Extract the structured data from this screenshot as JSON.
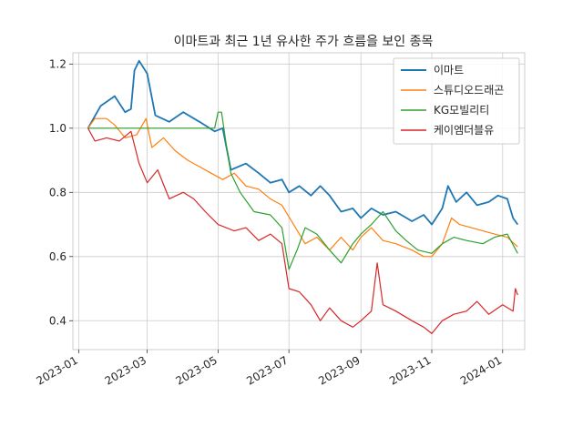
{
  "chart_data": {
    "type": "line",
    "title": "이마트과 최근 1년 유사한 주가 흐름을 보인 종목",
    "xlabel": "",
    "ylabel": "",
    "x_ticks": [
      "2023-01",
      "2023-03",
      "2023-05",
      "2023-07",
      "2023-09",
      "2023-11",
      "2024-01"
    ],
    "y_ticks": [
      "0.4",
      "0.6",
      "0.8",
      "1.0",
      "1.2"
    ],
    "xlim": [
      "2022-12-27",
      "2024-01-20"
    ],
    "ylim": [
      0.31,
      1.235
    ],
    "grid": true,
    "legend_position": "top-right",
    "series": [
      {
        "name": "이마트",
        "color": "#1f77b4",
        "points": [
          [
            "2023-01-09",
            1.0
          ],
          [
            "2023-01-20",
            1.07
          ],
          [
            "2023-02-01",
            1.1
          ],
          [
            "2023-02-10",
            1.05
          ],
          [
            "2023-02-15",
            1.06
          ],
          [
            "2023-02-18",
            1.18
          ],
          [
            "2023-02-22",
            1.21
          ],
          [
            "2023-03-01",
            1.17
          ],
          [
            "2023-03-08",
            1.04
          ],
          [
            "2023-03-20",
            1.02
          ],
          [
            "2023-04-01",
            1.05
          ],
          [
            "2023-04-15",
            1.02
          ],
          [
            "2023-04-28",
            0.99
          ],
          [
            "2023-05-05",
            1.0
          ],
          [
            "2023-05-12",
            0.87
          ],
          [
            "2023-05-25",
            0.89
          ],
          [
            "2023-06-05",
            0.86
          ],
          [
            "2023-06-15",
            0.83
          ],
          [
            "2023-06-25",
            0.84
          ],
          [
            "2023-07-01",
            0.8
          ],
          [
            "2023-07-10",
            0.82
          ],
          [
            "2023-07-20",
            0.79
          ],
          [
            "2023-07-28",
            0.82
          ],
          [
            "2023-08-05",
            0.79
          ],
          [
            "2023-08-15",
            0.74
          ],
          [
            "2023-08-25",
            0.75
          ],
          [
            "2023-09-01",
            0.72
          ],
          [
            "2023-09-10",
            0.75
          ],
          [
            "2023-09-20",
            0.73
          ],
          [
            "2023-10-01",
            0.74
          ],
          [
            "2023-10-15",
            0.71
          ],
          [
            "2023-10-25",
            0.73
          ],
          [
            "2023-11-01",
            0.7
          ],
          [
            "2023-11-10",
            0.75
          ],
          [
            "2023-11-15",
            0.82
          ],
          [
            "2023-11-22",
            0.77
          ],
          [
            "2023-12-01",
            0.8
          ],
          [
            "2023-12-10",
            0.76
          ],
          [
            "2023-12-20",
            0.77
          ],
          [
            "2023-12-28",
            0.79
          ],
          [
            "2024-01-05",
            0.78
          ],
          [
            "2024-01-10",
            0.72
          ],
          [
            "2024-01-14",
            0.7
          ]
        ]
      },
      {
        "name": "스튜디오드래곤",
        "color": "#ff7f0e",
        "points": [
          [
            "2023-01-09",
            1.0
          ],
          [
            "2023-01-15",
            1.03
          ],
          [
            "2023-01-25",
            1.03
          ],
          [
            "2023-02-01",
            1.01
          ],
          [
            "2023-02-10",
            0.97
          ],
          [
            "2023-02-20",
            0.98
          ],
          [
            "2023-02-28",
            1.03
          ],
          [
            "2023-03-05",
            0.94
          ],
          [
            "2023-03-15",
            0.97
          ],
          [
            "2023-03-25",
            0.93
          ],
          [
            "2023-04-05",
            0.9
          ],
          [
            "2023-04-15",
            0.88
          ],
          [
            "2023-04-25",
            0.86
          ],
          [
            "2023-05-05",
            0.84
          ],
          [
            "2023-05-15",
            0.86
          ],
          [
            "2023-05-25",
            0.82
          ],
          [
            "2023-06-05",
            0.81
          ],
          [
            "2023-06-15",
            0.78
          ],
          [
            "2023-06-25",
            0.76
          ],
          [
            "2023-07-05",
            0.7
          ],
          [
            "2023-07-15",
            0.64
          ],
          [
            "2023-07-25",
            0.66
          ],
          [
            "2023-08-05",
            0.62
          ],
          [
            "2023-08-15",
            0.66
          ],
          [
            "2023-08-25",
            0.62
          ],
          [
            "2023-09-01",
            0.66
          ],
          [
            "2023-09-10",
            0.69
          ],
          [
            "2023-09-20",
            0.65
          ],
          [
            "2023-10-01",
            0.64
          ],
          [
            "2023-10-15",
            0.62
          ],
          [
            "2023-10-25",
            0.6
          ],
          [
            "2023-11-01",
            0.6
          ],
          [
            "2023-11-10",
            0.64
          ],
          [
            "2023-11-18",
            0.72
          ],
          [
            "2023-11-25",
            0.7
          ],
          [
            "2023-12-05",
            0.69
          ],
          [
            "2023-12-15",
            0.68
          ],
          [
            "2023-12-25",
            0.67
          ],
          [
            "2024-01-05",
            0.66
          ],
          [
            "2024-01-14",
            0.63
          ]
        ]
      },
      {
        "name": "KG모빌리티",
        "color": "#2ca02c",
        "points": [
          [
            "2023-01-09",
            1.0
          ],
          [
            "2023-02-01",
            1.0
          ],
          [
            "2023-03-01",
            1.0
          ],
          [
            "2023-04-01",
            1.0
          ],
          [
            "2023-04-28",
            1.0
          ],
          [
            "2023-05-01",
            1.05
          ],
          [
            "2023-05-04",
            1.05
          ],
          [
            "2023-05-08",
            0.95
          ],
          [
            "2023-05-12",
            0.86
          ],
          [
            "2023-05-20",
            0.8
          ],
          [
            "2023-06-01",
            0.74
          ],
          [
            "2023-06-15",
            0.73
          ],
          [
            "2023-06-25",
            0.69
          ],
          [
            "2023-07-01",
            0.56
          ],
          [
            "2023-07-08",
            0.62
          ],
          [
            "2023-07-15",
            0.69
          ],
          [
            "2023-07-25",
            0.67
          ],
          [
            "2023-08-05",
            0.62
          ],
          [
            "2023-08-15",
            0.58
          ],
          [
            "2023-08-25",
            0.64
          ],
          [
            "2023-09-01",
            0.67
          ],
          [
            "2023-09-10",
            0.7
          ],
          [
            "2023-09-20",
            0.74
          ],
          [
            "2023-10-01",
            0.68
          ],
          [
            "2023-10-10",
            0.65
          ],
          [
            "2023-10-20",
            0.62
          ],
          [
            "2023-11-01",
            0.61
          ],
          [
            "2023-11-10",
            0.64
          ],
          [
            "2023-11-20",
            0.66
          ],
          [
            "2023-12-01",
            0.65
          ],
          [
            "2023-12-15",
            0.64
          ],
          [
            "2023-12-25",
            0.66
          ],
          [
            "2024-01-05",
            0.67
          ],
          [
            "2024-01-14",
            0.61
          ]
        ]
      },
      {
        "name": "케이엠더블유",
        "color": "#d62728",
        "points": [
          [
            "2023-01-09",
            1.0
          ],
          [
            "2023-01-15",
            0.96
          ],
          [
            "2023-01-25",
            0.97
          ],
          [
            "2023-02-05",
            0.96
          ],
          [
            "2023-02-15",
            0.99
          ],
          [
            "2023-02-22",
            0.89
          ],
          [
            "2023-03-01",
            0.83
          ],
          [
            "2023-03-10",
            0.87
          ],
          [
            "2023-03-20",
            0.78
          ],
          [
            "2023-04-01",
            0.8
          ],
          [
            "2023-04-10",
            0.78
          ],
          [
            "2023-04-20",
            0.74
          ],
          [
            "2023-05-01",
            0.7
          ],
          [
            "2023-05-15",
            0.68
          ],
          [
            "2023-05-25",
            0.69
          ],
          [
            "2023-06-05",
            0.65
          ],
          [
            "2023-06-15",
            0.67
          ],
          [
            "2023-06-25",
            0.64
          ],
          [
            "2023-07-01",
            0.5
          ],
          [
            "2023-07-10",
            0.49
          ],
          [
            "2023-07-20",
            0.45
          ],
          [
            "2023-07-28",
            0.4
          ],
          [
            "2023-08-05",
            0.44
          ],
          [
            "2023-08-15",
            0.4
          ],
          [
            "2023-08-25",
            0.38
          ],
          [
            "2023-09-01",
            0.4
          ],
          [
            "2023-09-10",
            0.43
          ],
          [
            "2023-09-15",
            0.58
          ],
          [
            "2023-09-20",
            0.45
          ],
          [
            "2023-10-01",
            0.43
          ],
          [
            "2023-10-15",
            0.4
          ],
          [
            "2023-10-25",
            0.38
          ],
          [
            "2023-11-01",
            0.36
          ],
          [
            "2023-11-10",
            0.4
          ],
          [
            "2023-11-20",
            0.42
          ],
          [
            "2023-12-01",
            0.43
          ],
          [
            "2023-12-10",
            0.46
          ],
          [
            "2023-12-20",
            0.42
          ],
          [
            "2024-01-01",
            0.45
          ],
          [
            "2024-01-10",
            0.43
          ],
          [
            "2024-01-12",
            0.5
          ],
          [
            "2024-01-14",
            0.48
          ]
        ]
      }
    ]
  }
}
